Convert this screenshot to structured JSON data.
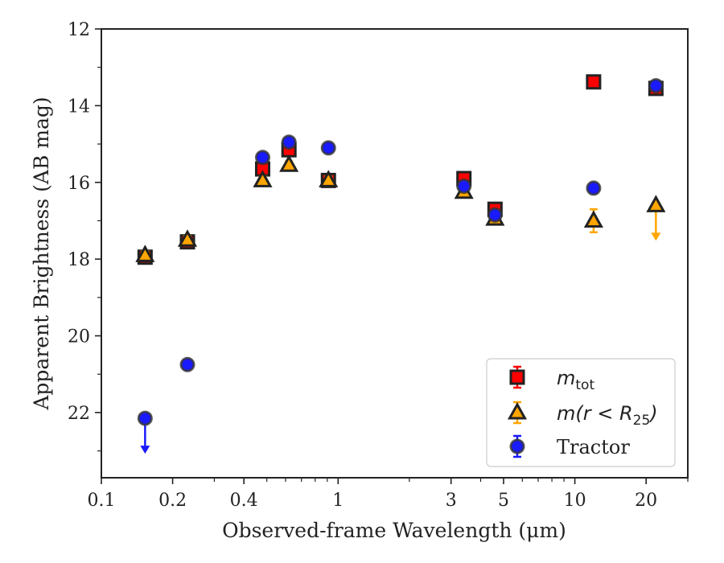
{
  "chart_data": {
    "type": "scatter",
    "xlabel": "Observed-frame Wavelength (μm)",
    "ylabel": "Apparent Brightness (AB mag)",
    "xscale": "log",
    "xlim": [
      0.1,
      30
    ],
    "ylim": [
      23.7,
      12
    ],
    "y_inverted": true,
    "xticks": [
      {
        "value": 0.1,
        "label": "0.1"
      },
      {
        "value": 0.2,
        "label": "0.2"
      },
      {
        "value": 0.4,
        "label": "0.4"
      },
      {
        "value": 1,
        "label": "1"
      },
      {
        "value": 3,
        "label": "3"
      },
      {
        "value": 5,
        "label": "5"
      },
      {
        "value": 10,
        "label": "10"
      },
      {
        "value": 20,
        "label": "20"
      }
    ],
    "yticks": [
      {
        "value": 12,
        "label": "12"
      },
      {
        "value": 14,
        "label": "14"
      },
      {
        "value": 16,
        "label": "16"
      },
      {
        "value": 18,
        "label": "18"
      },
      {
        "value": 20,
        "label": "20"
      },
      {
        "value": 22,
        "label": "22"
      }
    ],
    "legend": {
      "position": "lower-right",
      "entries": [
        {
          "series": "mtot",
          "base": "m",
          "sub": "tot",
          "suffix": ""
        },
        {
          "series": "mr25",
          "base": "m(r < R",
          "sub": "25",
          "suffix": ")"
        },
        {
          "series": "tractor",
          "base": "Tractor",
          "sub": "",
          "suffix": ""
        }
      ]
    },
    "series": [
      {
        "key": "mtot",
        "marker": "square",
        "color": "#ff0000",
        "edge": "#222222",
        "points": [
          {
            "x": 0.153,
            "y": 17.95,
            "err": 0.1
          },
          {
            "x": 0.231,
            "y": 17.55,
            "err": 0.1
          },
          {
            "x": 0.48,
            "y": 15.65,
            "err": 0.1
          },
          {
            "x": 0.62,
            "y": 15.15,
            "err": 0.1
          },
          {
            "x": 0.91,
            "y": 15.95,
            "err": 0.1
          },
          {
            "x": 3.4,
            "y": 15.9,
            "err": 0.1
          },
          {
            "x": 4.6,
            "y": 16.7,
            "err": 0.1
          },
          {
            "x": 12.0,
            "y": 13.38,
            "err": 0.05
          },
          {
            "x": 22.0,
            "y": 13.55,
            "err": 0.05
          }
        ]
      },
      {
        "key": "mr25",
        "marker": "triangle",
        "color": "#ffa500",
        "edge": "#222222",
        "points": [
          {
            "x": 0.153,
            "y": 17.9,
            "err": 0.1
          },
          {
            "x": 0.231,
            "y": 17.5,
            "err": 0.1
          },
          {
            "x": 0.48,
            "y": 15.95,
            "err": 0.1
          },
          {
            "x": 0.62,
            "y": 15.55,
            "err": 0.1
          },
          {
            "x": 0.91,
            "y": 15.95,
            "err": 0.1
          },
          {
            "x": 3.4,
            "y": 16.25,
            "err": 0.1
          },
          {
            "x": 4.6,
            "y": 16.95,
            "err": 0.1
          },
          {
            "x": 12.0,
            "y": 17.0,
            "err": 0.3
          },
          {
            "x": 22.0,
            "y": 16.6,
            "upper_limit": true
          }
        ]
      },
      {
        "key": "tractor",
        "marker": "circle",
        "color": "#1a1aff",
        "edge": "#333333",
        "points": [
          {
            "x": 0.153,
            "y": 22.15,
            "upper_limit": true
          },
          {
            "x": 0.231,
            "y": 20.75,
            "err": 0.1
          },
          {
            "x": 0.48,
            "y": 15.35,
            "err": 0.1
          },
          {
            "x": 0.62,
            "y": 14.95,
            "err": 0.1
          },
          {
            "x": 0.91,
            "y": 15.1,
            "err": 0.1
          },
          {
            "x": 3.4,
            "y": 16.1,
            "err": 0.1
          },
          {
            "x": 4.6,
            "y": 16.85,
            "err": 0.1
          },
          {
            "x": 12.0,
            "y": 16.15,
            "err": 0.05
          },
          {
            "x": 22.0,
            "y": 13.48,
            "err": 0.05
          }
        ]
      }
    ]
  }
}
